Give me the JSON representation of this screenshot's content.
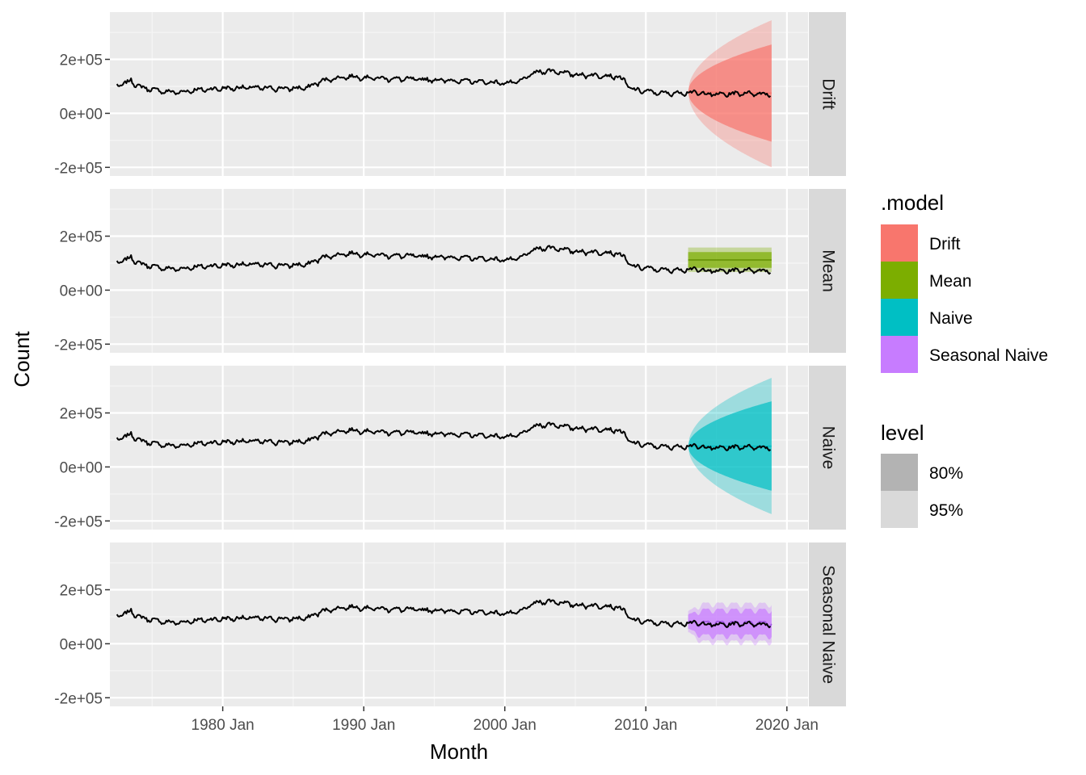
{
  "chart_data": {
    "type": "line",
    "xlabel": "Month",
    "ylabel": "Count",
    "xlim": [
      1972.0,
      2021.5
    ],
    "ylim": [
      -232000,
      375000
    ],
    "x_ticks": [
      {
        "value": 1980.0,
        "label": "1980 Jan"
      },
      {
        "value": 1990.0,
        "label": "1990 Jan"
      },
      {
        "value": 2000.0,
        "label": "2000 Jan"
      },
      {
        "value": 2010.0,
        "label": "2010 Jan"
      },
      {
        "value": 2020.0,
        "label": "2020 Jan"
      }
    ],
    "y_ticks": [
      {
        "value": 200000,
        "label": "2e+05"
      },
      {
        "value": 0,
        "label": "0e+00"
      },
      {
        "value": -200000,
        "label": "-2e+05"
      }
    ],
    "grid": true,
    "facet_strip_position": "right",
    "observed_series": {
      "x_start": 1972.5,
      "x_end": 2018.9,
      "anchors": [
        [
          1972.5,
          105000
        ],
        [
          1973.0,
          108000
        ],
        [
          1973.5,
          122000
        ],
        [
          1974.0,
          100000
        ],
        [
          1975.0,
          88000
        ],
        [
          1976.0,
          80000
        ],
        [
          1977.0,
          78000
        ],
        [
          1978.0,
          86000
        ],
        [
          1980.0,
          92000
        ],
        [
          1982.0,
          96000
        ],
        [
          1983.0,
          93000
        ],
        [
          1985.0,
          92000
        ],
        [
          1986.0,
          95000
        ],
        [
          1987.0,
          120000
        ],
        [
          1988.0,
          130000
        ],
        [
          1989.0,
          136000
        ],
        [
          1990.0,
          133000
        ],
        [
          1992.0,
          128000
        ],
        [
          1995.0,
          124000
        ],
        [
          1998.0,
          118000
        ],
        [
          2000.0,
          112000
        ],
        [
          2001.0,
          116000
        ],
        [
          2002.0,
          148000
        ],
        [
          2003.0,
          158000
        ],
        [
          2004.0,
          153000
        ],
        [
          2005.0,
          143000
        ],
        [
          2007.0,
          140000
        ],
        [
          2008.0,
          136000
        ],
        [
          2008.5,
          120000
        ],
        [
          2009.0,
          88000
        ],
        [
          2010.0,
          82000
        ],
        [
          2011.0,
          75000
        ],
        [
          2012.0,
          74000
        ],
        [
          2013.0,
          78000
        ],
        [
          2014.0,
          74000
        ],
        [
          2015.0,
          70000
        ],
        [
          2016.0,
          72000
        ],
        [
          2017.0,
          75000
        ],
        [
          2018.0,
          73000
        ],
        [
          2018.9,
          72000
        ]
      ]
    },
    "forecast": {
      "x_start": 2013.0,
      "x_end": 2018.9,
      "levels": [
        "80%",
        "95%"
      ]
    },
    "panels": [
      {
        "model": "Drift",
        "color": "#F8766D",
        "band": "widening",
        "start_value": 80000,
        "end_mean": 75000,
        "end_lo80": -105000,
        "end_hi80": 255000,
        "end_lo95": -200000,
        "end_hi95": 345000
      },
      {
        "model": "Mean",
        "color": "#7CAE00",
        "band": "flat",
        "mean": 112000,
        "lo80": 83000,
        "hi80": 141000,
        "lo95": 67000,
        "hi95": 158000
      },
      {
        "model": "Naive",
        "color": "#00BFC4",
        "band": "widening",
        "start_value": 77000,
        "end_mean": 77000,
        "end_lo80": -88000,
        "end_hi80": 243000,
        "end_lo95": -175000,
        "end_hi95": 330000
      },
      {
        "model": "Seasonal Naive",
        "color": "#C77CFF",
        "band": "seasonal",
        "start_value": 77000,
        "end_mean": 76000,
        "end_lo80": 25000,
        "end_hi80": 120000,
        "end_lo95": 5000,
        "end_hi95": 145000
      }
    ],
    "legend": {
      "placement": "right",
      "model_title": ".model",
      "model_items": [
        {
          "label": "Drift",
          "color": "#F8766D"
        },
        {
          "label": "Mean",
          "color": "#7CAE00"
        },
        {
          "label": "Naive",
          "color": "#00BFC4"
        },
        {
          "label": "Seasonal Naive",
          "color": "#C77CFF"
        }
      ],
      "level_title": "level",
      "level_items": [
        {
          "label": "80%",
          "color": "#B3B3B3"
        },
        {
          "label": "95%",
          "color": "#D9D9D9"
        }
      ]
    }
  }
}
